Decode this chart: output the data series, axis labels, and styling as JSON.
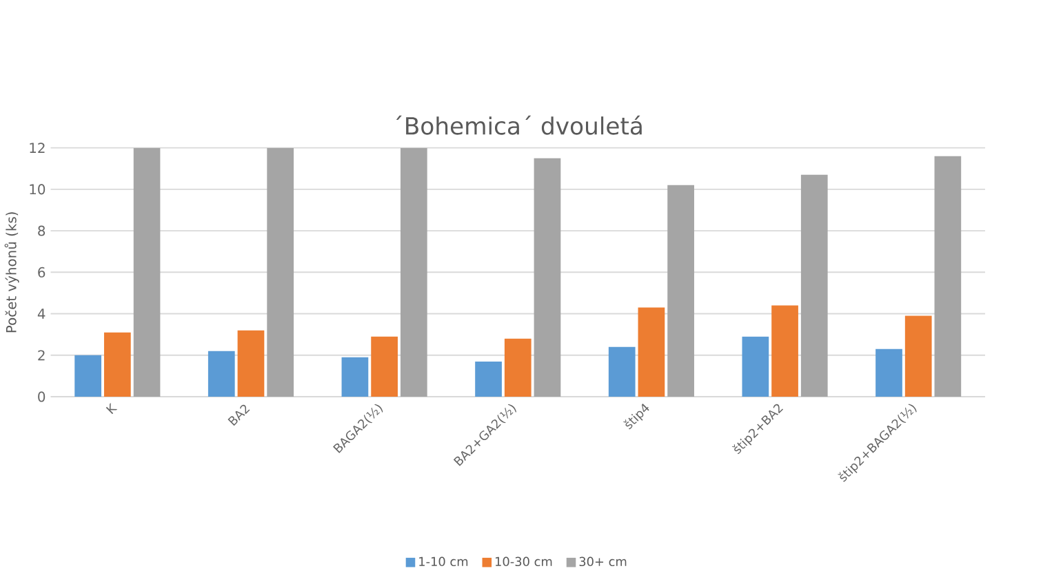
{
  "chart_data": {
    "type": "bar",
    "title": "´Bohemica´ dvouletá",
    "ylabel": "Počet výhonů (ks)",
    "categories": [
      "K",
      "BA2",
      "BAGA2(½)",
      "BA2+GA2(½)",
      "štip4",
      "štip2+BA2",
      "štip2+BAGA2(½)"
    ],
    "series": [
      {
        "name": "1-10 cm",
        "color": "#5b9bd5",
        "values": [
          2.0,
          2.2,
          1.9,
          1.7,
          2.4,
          2.9,
          2.3
        ]
      },
      {
        "name": "10-30 cm",
        "color": "#ed7d31",
        "values": [
          3.1,
          3.2,
          2.9,
          2.8,
          4.3,
          4.4,
          3.9
        ]
      },
      {
        "name": "30+ cm",
        "color": "#a5a5a5",
        "values": [
          12,
          12,
          12,
          11.5,
          10.2,
          10.7,
          11.6
        ]
      }
    ],
    "ylim": [
      0,
      12
    ],
    "yticks": [
      0,
      2,
      4,
      6,
      8,
      10,
      12
    ],
    "grid": "y",
    "legend": "bottom"
  }
}
